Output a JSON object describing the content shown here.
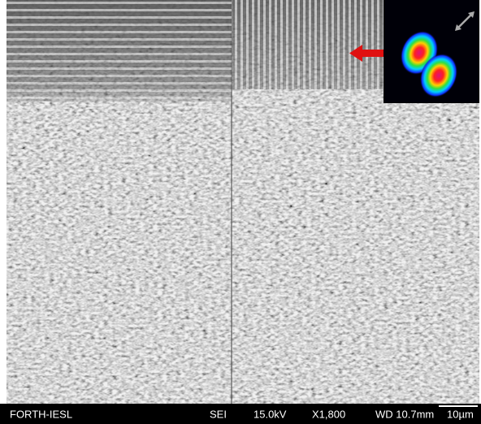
{
  "footer": {
    "label": "FORTH-IESL",
    "detector": "SEI",
    "voltage": "15.0kV",
    "magnification": "X1,800",
    "working_distance": "WD 10.7mm",
    "scale": "10µm"
  }
}
